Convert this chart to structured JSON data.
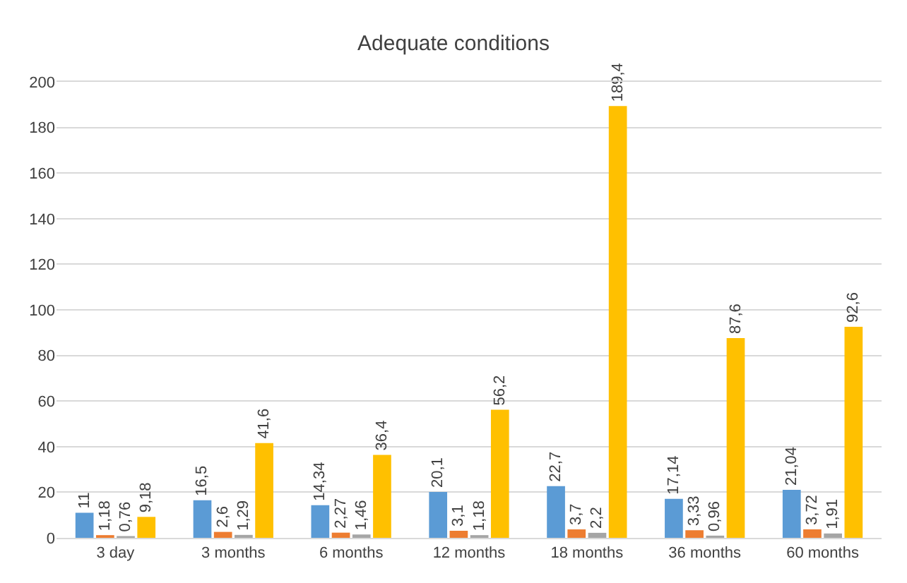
{
  "chart_data": {
    "type": "bar",
    "title": "Adequate conditions",
    "categories": [
      "3 day",
      "3 months",
      "6 months",
      "12 months",
      "18 months",
      "36 months",
      "60 months"
    ],
    "series": [
      {
        "color": "#5b9bd5",
        "values": [
          11,
          16.5,
          14.34,
          20.1,
          22.7,
          17.14,
          21.04
        ],
        "value_labels": [
          "11",
          "16,5",
          "14,34",
          "20,1",
          "22,7",
          "17,14",
          "21,04"
        ]
      },
      {
        "color": "#ed7d31",
        "values": [
          1.18,
          2.6,
          2.27,
          3.1,
          3.7,
          3.33,
          3.72
        ],
        "value_labels": [
          "1,18",
          "2,6",
          "2,27",
          "3,1",
          "3,7",
          "3,33",
          "3,72"
        ]
      },
      {
        "color": "#a5a5a5",
        "values": [
          0.76,
          1.29,
          1.46,
          1.18,
          2.2,
          0.96,
          1.91
        ],
        "value_labels": [
          "0,76",
          "1,29",
          "1,46",
          "1,18",
          "2,2",
          "0,96",
          "1,91"
        ]
      },
      {
        "color": "#ffc000",
        "values": [
          9.18,
          41.6,
          36.4,
          56.2,
          189.4,
          87.6,
          92.6
        ],
        "value_labels": [
          "9,18",
          "41,6",
          "36,4",
          "56,2",
          "189,4",
          "87,6",
          "92,6"
        ]
      }
    ],
    "ylim": [
      0,
      200
    ],
    "yticks": [
      0,
      20,
      40,
      60,
      80,
      100,
      120,
      140,
      160,
      180,
      200
    ],
    "grid": "y"
  }
}
